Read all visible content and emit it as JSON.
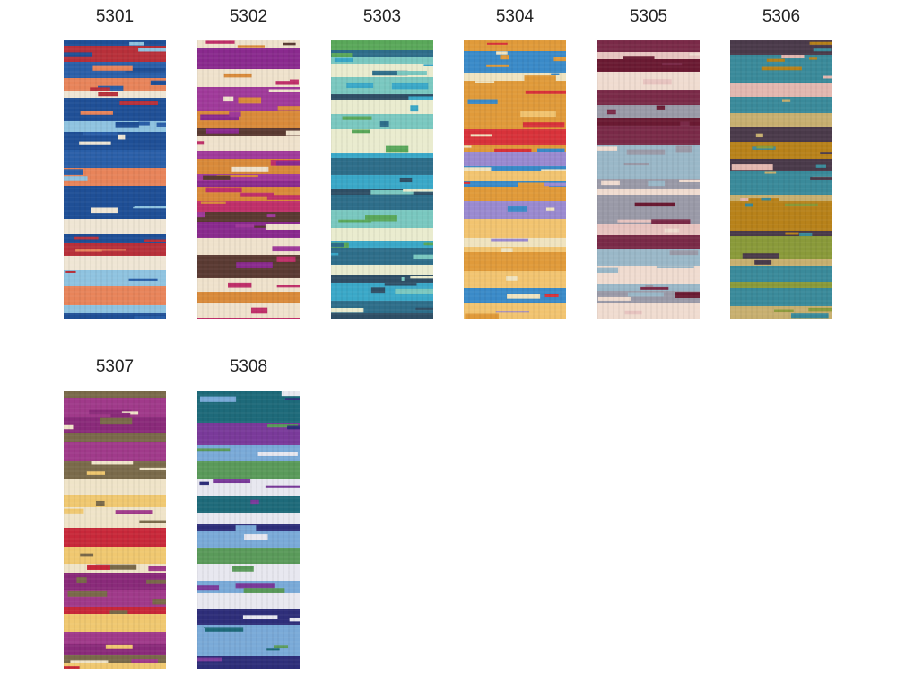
{
  "swatches": [
    {
      "label": "5301"
    },
    {
      "label": "5302"
    },
    {
      "label": "5303"
    },
    {
      "label": "5304"
    },
    {
      "label": "5305"
    },
    {
      "label": "5306"
    },
    {
      "label": "5307"
    },
    {
      "label": "5308"
    }
  ]
}
